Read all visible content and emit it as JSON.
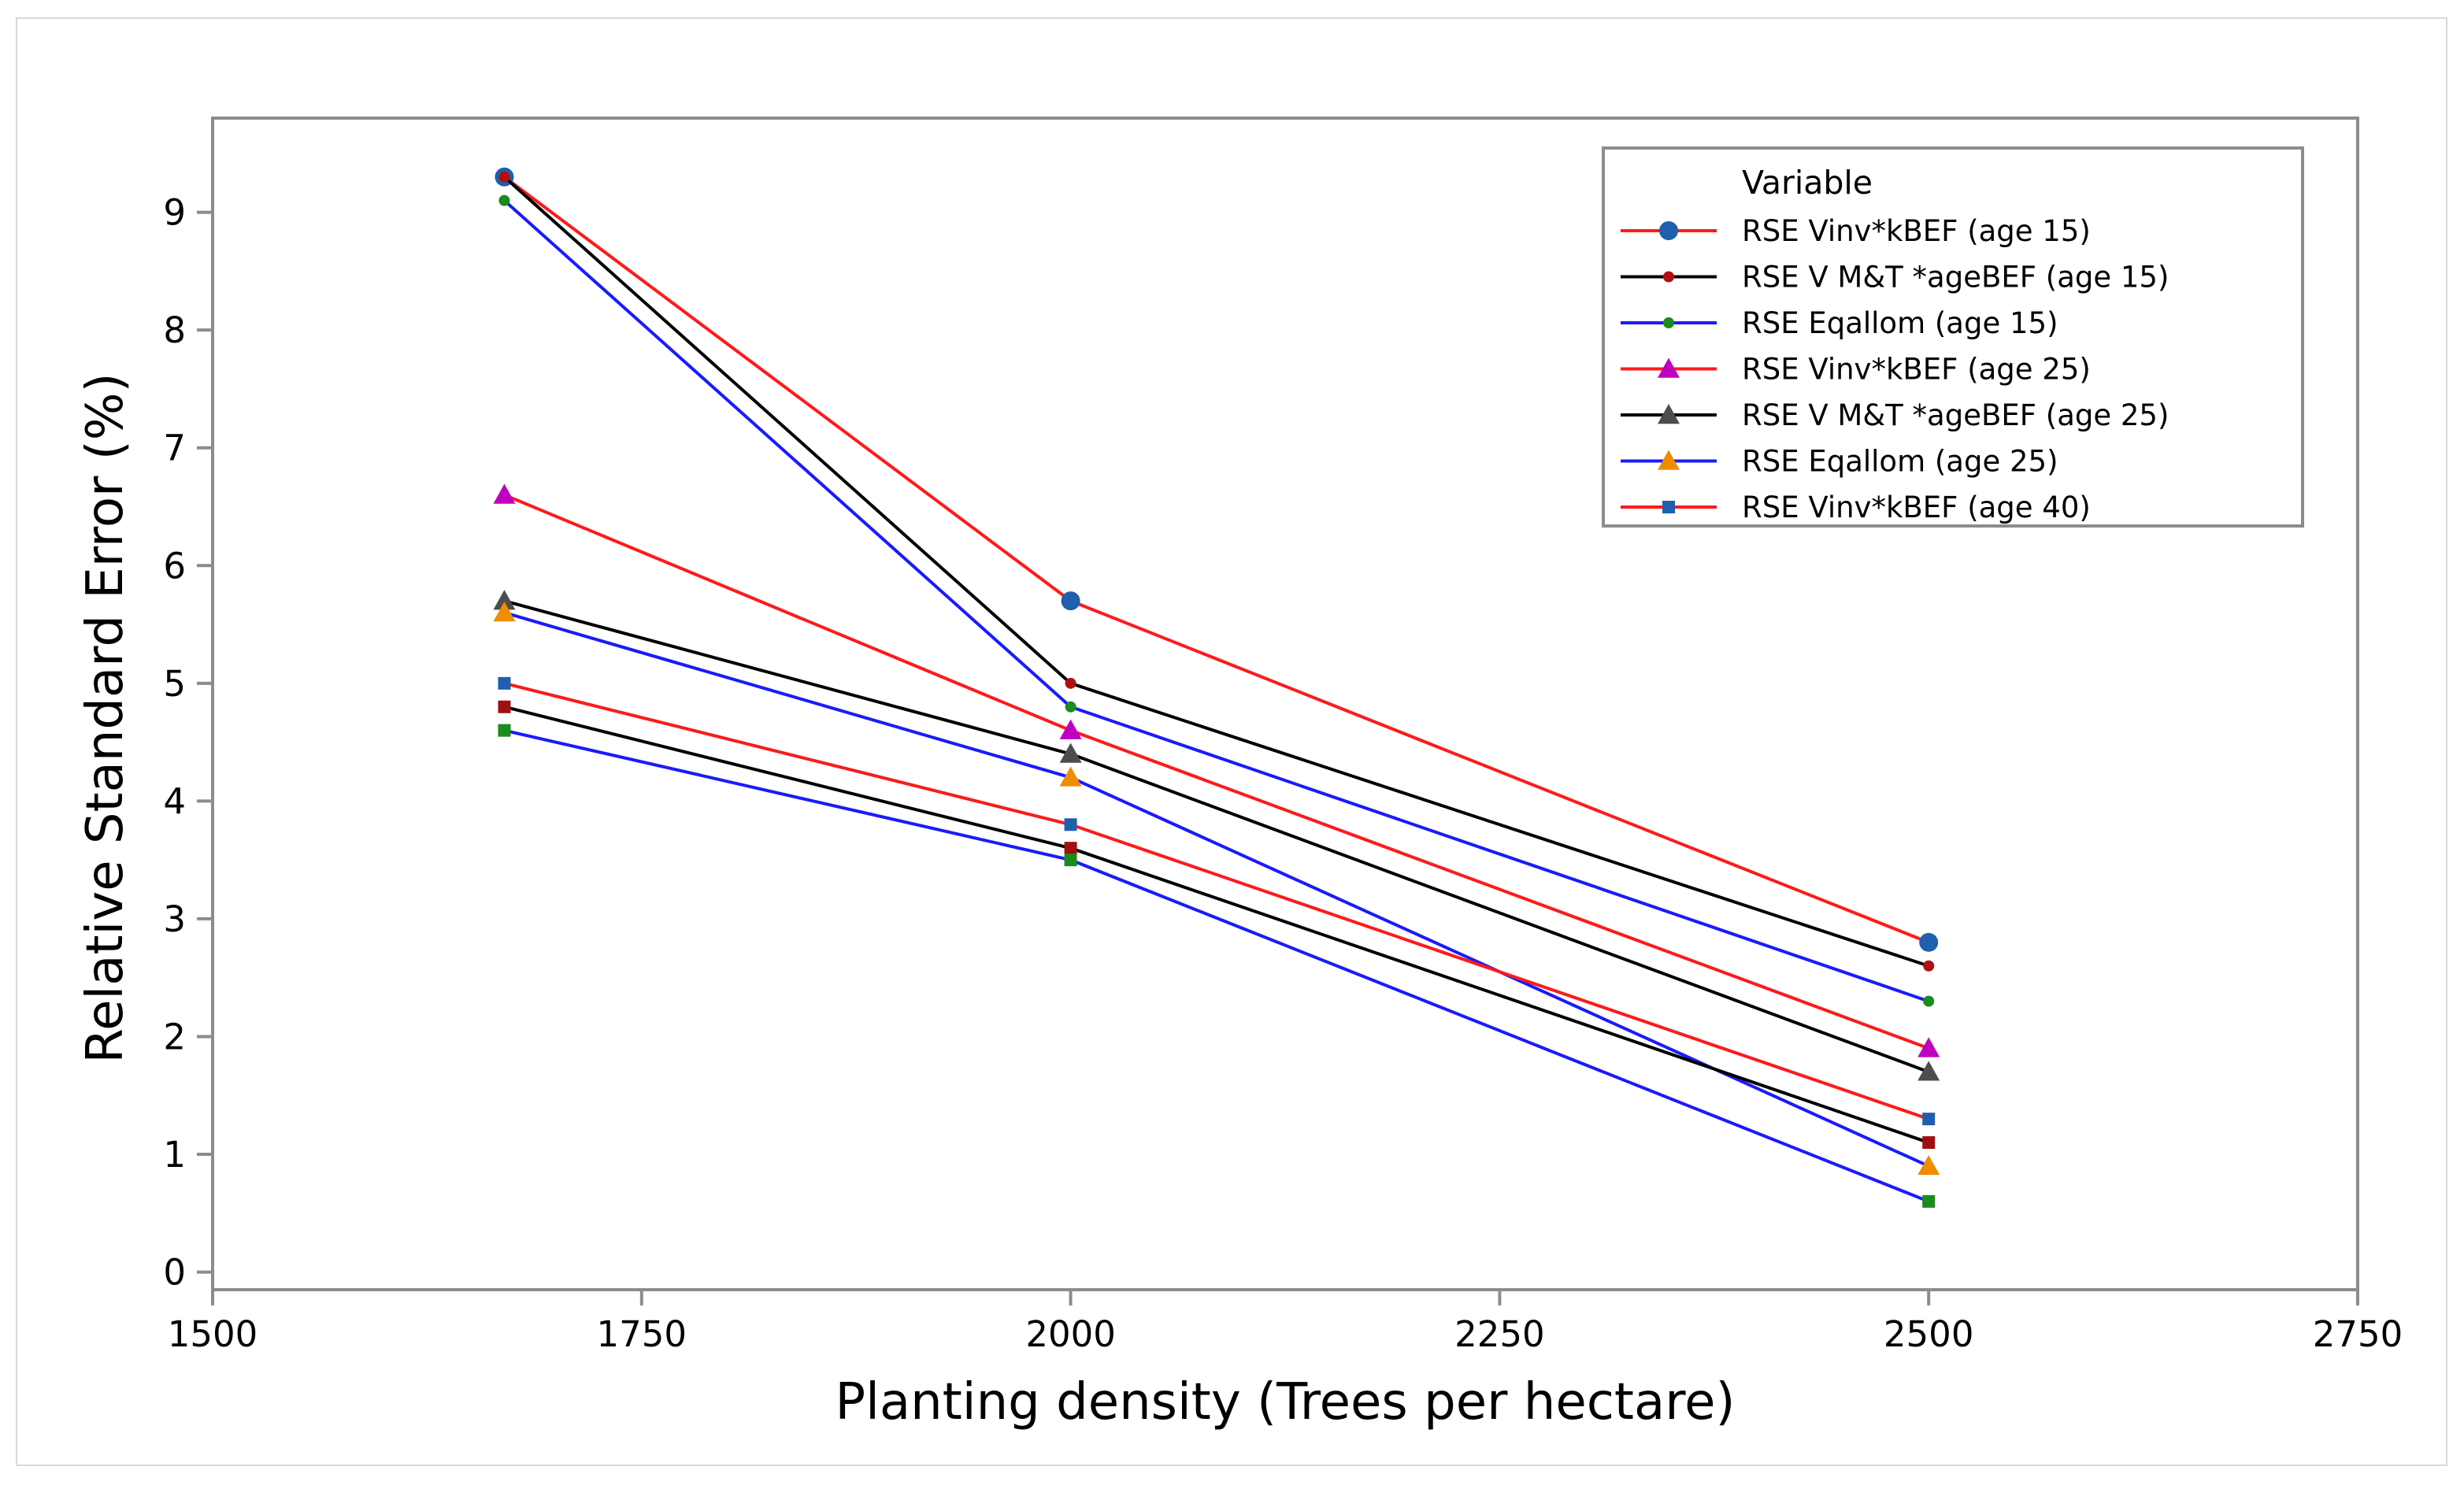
{
  "chart_data": {
    "type": "line",
    "title": "",
    "xlabel": "Planting density (Trees per hectare)",
    "ylabel": "Relative Standard Error (%)",
    "xlim": [
      1500,
      2750
    ],
    "ylim": [
      -0.15,
      9.8
    ],
    "xticks": [
      1500,
      1750,
      2000,
      2250,
      2500,
      2750
    ],
    "yticks": [
      0,
      1,
      2,
      3,
      4,
      5,
      6,
      7,
      8,
      9
    ],
    "grid": false,
    "legend": {
      "title": "Variable",
      "placement": "top-right"
    },
    "series": [
      {
        "name": "RSE Vinv*kBEF (age 15)",
        "line_color": "#ff1a1a",
        "marker": "circle-large",
        "marker_color": "#1f5fad",
        "x": [
          1670,
          2000,
          2500
        ],
        "y": [
          9.3,
          5.7,
          2.8
        ]
      },
      {
        "name": "RSE V M&T *ageBEF (age 15)",
        "line_color": "#000000",
        "marker": "circle-small",
        "marker_color": "#b01010",
        "x": [
          1670,
          2000,
          2500
        ],
        "y": [
          9.3,
          5.0,
          2.6
        ]
      },
      {
        "name": "RSE Eqallom (age 15)",
        "line_color": "#1a1aff",
        "marker": "circle-small",
        "marker_color": "#1a8c1a",
        "x": [
          1670,
          2000,
          2500
        ],
        "y": [
          9.1,
          4.8,
          2.3
        ]
      },
      {
        "name": "RSE Vinv*kBEF (age 25)",
        "line_color": "#ff1a1a",
        "marker": "triangle",
        "marker_color": "#c000c0",
        "x": [
          1670,
          2000,
          2500
        ],
        "y": [
          6.6,
          4.6,
          1.9
        ]
      },
      {
        "name": "RSE V M&T *ageBEF (age 25)",
        "line_color": "#000000",
        "marker": "triangle",
        "marker_color": "#4d4d4d",
        "x": [
          1670,
          2000,
          2500
        ],
        "y": [
          5.7,
          4.4,
          1.7
        ]
      },
      {
        "name": "RSE Eqallom (age 25)",
        "line_color": "#1a1aff",
        "marker": "triangle",
        "marker_color": "#f08c00",
        "x": [
          1670,
          2000,
          2500
        ],
        "y": [
          5.6,
          4.2,
          0.9
        ]
      },
      {
        "name": "RSE Vinv*kBEF (age 40)",
        "line_color": "#ff1a1a",
        "marker": "square",
        "marker_color": "#1f5fad",
        "x": [
          1670,
          2000,
          2500
        ],
        "y": [
          5.0,
          3.8,
          1.3
        ]
      },
      {
        "name": "",
        "line_color": "#000000",
        "marker": "square",
        "marker_color": "#a01010",
        "x": [
          1670,
          2000,
          2500
        ],
        "y": [
          4.8,
          3.6,
          1.1
        ]
      },
      {
        "name": "",
        "line_color": "#1a1aff",
        "marker": "square",
        "marker_color": "#1a8c1a",
        "x": [
          1670,
          2000,
          2500
        ],
        "y": [
          4.6,
          3.5,
          0.6
        ]
      }
    ]
  }
}
